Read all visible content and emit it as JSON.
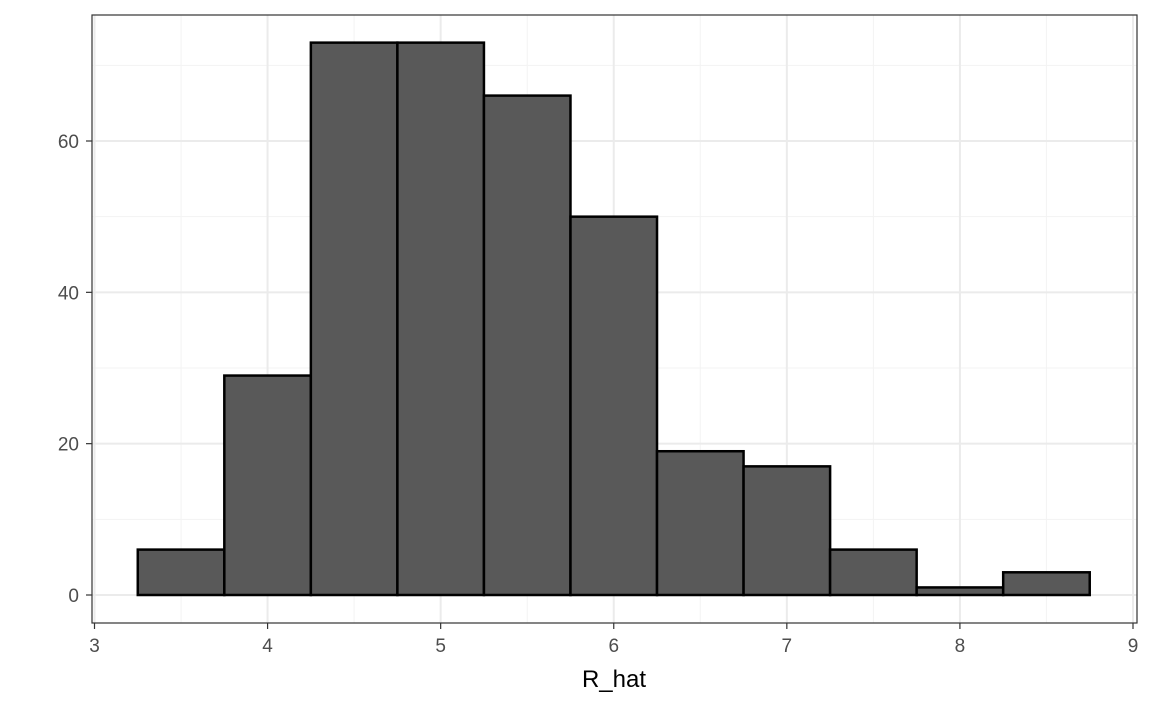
{
  "chart_data": {
    "type": "bar",
    "subtype": "histogram",
    "title": "",
    "xlabel": "R_hat",
    "ylabel": "",
    "xlim": [
      3,
      9
    ],
    "ylim": [
      -3.7,
      76.7
    ],
    "x_ticks": [
      3,
      4,
      5,
      6,
      7,
      8,
      9
    ],
    "y_ticks": [
      0,
      20,
      40,
      60
    ],
    "grid": true,
    "legend": "none",
    "bins": [
      {
        "start": 3.25,
        "end": 3.75,
        "count": 6
      },
      {
        "start": 3.75,
        "end": 4.25,
        "count": 29
      },
      {
        "start": 4.25,
        "end": 4.75,
        "count": 73
      },
      {
        "start": 4.75,
        "end": 5.25,
        "count": 73
      },
      {
        "start": 5.25,
        "end": 5.75,
        "count": 66
      },
      {
        "start": 5.75,
        "end": 6.25,
        "count": 50
      },
      {
        "start": 6.25,
        "end": 6.75,
        "count": 19
      },
      {
        "start": 6.75,
        "end": 7.25,
        "count": 17
      },
      {
        "start": 7.25,
        "end": 7.75,
        "count": 6
      },
      {
        "start": 7.75,
        "end": 8.25,
        "count": 1
      },
      {
        "start": 8.25,
        "end": 8.75,
        "count": 3
      }
    ],
    "colors": {
      "bar_fill": "#595959",
      "bar_stroke": "#000000",
      "grid_major": "#ebebeb",
      "grid_minor": "#f3f3f3",
      "panel_border": "#333333"
    }
  }
}
